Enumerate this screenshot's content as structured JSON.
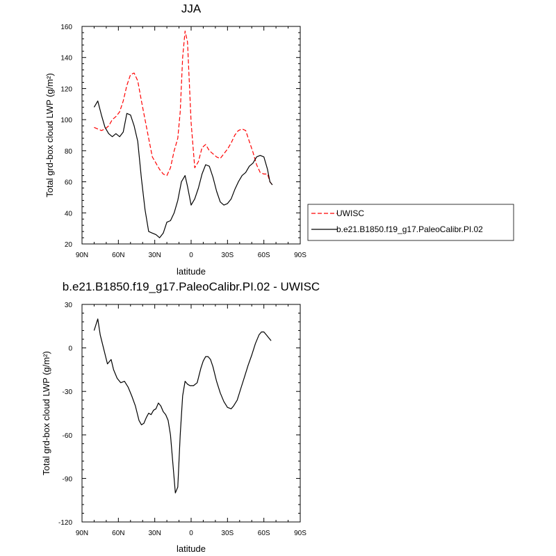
{
  "chart_data": [
    {
      "type": "line",
      "title": "JJA",
      "xlabel": "latitude",
      "ylabel": "Total grd-box cloud LWP (g/m²)",
      "xlim": [
        90,
        -90
      ],
      "ylim": [
        20,
        160
      ],
      "x_ticks": [
        90,
        60,
        30,
        0,
        -30,
        -60,
        -90
      ],
      "x_tick_labels": [
        "90N",
        "60N",
        "30N",
        "0",
        "30S",
        "60S",
        "90S"
      ],
      "y_ticks": [
        20,
        40,
        60,
        80,
        100,
        120,
        140,
        160
      ],
      "y_tick_labels": [
        "20",
        "40",
        "60",
        "80",
        "100",
        "120",
        "140",
        "160"
      ],
      "grid": false,
      "legend_position": "right",
      "series": [
        {
          "name": "UWISC",
          "color": "#ff0000",
          "dash": "dashed",
          "x": [
            80,
            77,
            74,
            71,
            68,
            65,
            62,
            59,
            56,
            53,
            50,
            47,
            44,
            41,
            38,
            35,
            32,
            29,
            26,
            23,
            20,
            17,
            14,
            11,
            9,
            7,
            5,
            3,
            0,
            -3,
            -6,
            -9,
            -12,
            -15,
            -18,
            -21,
            -24,
            -27,
            -30,
            -33,
            -36,
            -39,
            -42,
            -45,
            -48,
            -51,
            -54,
            -57,
            -60,
            -63,
            -65,
            -67
          ],
          "values": [
            95,
            94,
            93,
            94,
            96,
            100,
            102,
            105,
            112,
            122,
            129,
            130,
            125,
            112,
            100,
            88,
            76,
            72,
            68,
            65,
            64,
            69,
            80,
            88,
            105,
            140,
            157,
            150,
            98,
            69,
            73,
            82,
            84,
            80,
            78,
            76,
            75,
            78,
            81,
            85,
            90,
            93,
            94,
            93,
            86,
            79,
            71,
            66,
            65,
            65,
            60,
            58
          ]
        },
        {
          "name": "b.e21.B1850.f19_g17.PaleoCalibr.PI.02",
          "color": "#000000",
          "dash": "solid",
          "x": [
            80,
            77,
            74,
            71,
            68,
            65,
            62,
            59,
            56,
            53,
            50,
            47,
            44,
            41,
            38,
            35,
            32,
            29,
            26,
            23,
            20,
            17,
            14,
            11,
            8,
            5,
            3,
            0,
            -3,
            -6,
            -9,
            -12,
            -15,
            -18,
            -21,
            -24,
            -27,
            -30,
            -33,
            -36,
            -39,
            -42,
            -45,
            -48,
            -51,
            -54,
            -57,
            -60,
            -63,
            -65,
            -67
          ],
          "values": [
            108,
            112,
            103,
            95,
            91,
            89,
            91,
            89,
            92,
            104,
            103,
            96,
            86,
            62,
            42,
            28,
            27,
            26,
            24,
            27,
            34,
            35,
            40,
            48,
            60,
            64,
            57,
            45,
            49,
            56,
            65,
            71,
            70,
            63,
            54,
            47,
            45,
            46,
            49,
            55,
            60,
            64,
            66,
            70,
            72,
            76,
            77,
            76,
            68,
            60,
            58
          ]
        }
      ]
    },
    {
      "type": "line",
      "title": "b.e21.B1850.f19_g17.PaleoCalibr.PI.02 - UWISC",
      "xlabel": "latitude",
      "ylabel": "Total grd-box cloud LWP (g/m²)",
      "xlim": [
        90,
        -90
      ],
      "ylim": [
        -120,
        30
      ],
      "x_ticks": [
        90,
        60,
        30,
        0,
        -30,
        -60,
        -90
      ],
      "x_tick_labels": [
        "90N",
        "60N",
        "30N",
        "0",
        "30S",
        "60S",
        "90S"
      ],
      "y_ticks": [
        -120,
        -90,
        -60,
        -30,
        0,
        30
      ],
      "y_tick_labels": [
        "-120",
        "-90",
        "-60",
        "-30",
        "0",
        "30"
      ],
      "grid": false,
      "series": [
        {
          "color": "#000000",
          "dash": "solid",
          "x": [
            80,
            77,
            75,
            72,
            69,
            66,
            64,
            61,
            58,
            55,
            52,
            49,
            46,
            43,
            41,
            39,
            37,
            35,
            33,
            31,
            29,
            27,
            25,
            23,
            21,
            19,
            17,
            15,
            13,
            11,
            9,
            7,
            5,
            3,
            1,
            -2,
            -5,
            -8,
            -10,
            -12,
            -14,
            -16,
            -18,
            -21,
            -24,
            -27,
            -30,
            -33,
            -35,
            -38,
            -41,
            -44,
            -47,
            -50,
            -53,
            -56,
            -58,
            -60,
            -62,
            -64,
            -66
          ],
          "values": [
            12,
            20,
            9,
            -1,
            -11,
            -8,
            -15,
            -21,
            -24,
            -23,
            -27,
            -33,
            -40,
            -50,
            -53,
            -52,
            -48,
            -45,
            -46,
            -43,
            -42,
            -38,
            -40,
            -44,
            -46,
            -50,
            -60,
            -80,
            -100,
            -96,
            -60,
            -33,
            -23,
            -25,
            -26,
            -26,
            -24,
            -14,
            -9,
            -6,
            -6,
            -8,
            -13,
            -23,
            -31,
            -37,
            -41,
            -42,
            -40,
            -36,
            -28,
            -20,
            -12,
            -5,
            3,
            9,
            11,
            11,
            9,
            7,
            5
          ]
        }
      ]
    }
  ]
}
